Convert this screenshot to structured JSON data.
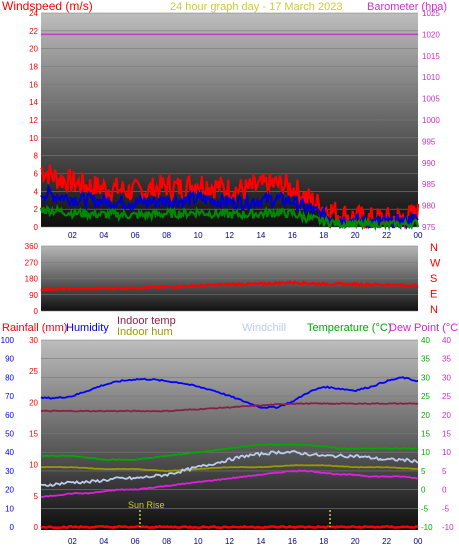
{
  "header": {
    "left_label": "Windspeed (m/s)",
    "center_label": "24 hour graph day - 17 March 2023",
    "right_label": "Barometer (hpa)"
  },
  "colors": {
    "wind_max": "#ff0000",
    "wind_avg": "#0000cc",
    "wind_min": "#008800",
    "barometer": "#cc33cc",
    "rainfall": "#ff0000",
    "humidity": "#0000ff",
    "indoor_temp": "#882244",
    "indoor_hum": "#999900",
    "windchill": "#bbccee",
    "temperature": "#00aa00",
    "dew_point": "#dd22dd",
    "sunrise_marker": "#cccc33"
  },
  "x_ticks": [
    "02",
    "04",
    "06",
    "08",
    "10",
    "12",
    "14",
    "16",
    "18",
    "20",
    "22",
    "00"
  ],
  "panel1": {
    "left_ticks": [
      "0",
      "2",
      "4",
      "6",
      "8",
      "10",
      "12",
      "14",
      "16",
      "18",
      "20",
      "22",
      "24"
    ],
    "right_ticks": [
      "975",
      "980",
      "985",
      "990",
      "995",
      "1000",
      "1005",
      "1010",
      "1015",
      "1020",
      "1025"
    ]
  },
  "panel2": {
    "left_ticks": [
      "0",
      "90",
      "180",
      "270",
      "360"
    ],
    "dir_labels": [
      "N",
      "W",
      "S",
      "E",
      "N"
    ]
  },
  "panel3": {
    "label_rain": "Rainfall (mm)",
    "label_hum": "Humidity",
    "label_in_temp": "Indoor temp",
    "label_in_hum": "Indoor hum",
    "label_windchill": "Windchill",
    "label_temp": "Temperature (°C)",
    "label_dew": "Dew Point (°C)",
    "hum_ticks": [
      "0",
      "10",
      "20",
      "30",
      "40",
      "50",
      "60",
      "70",
      "80",
      "90",
      "100"
    ],
    "rain_ticks": [
      "0",
      "5",
      "10",
      "15",
      "20",
      "25",
      "30"
    ],
    "temp_ticks": [
      "-10",
      "-5",
      "0",
      "5",
      "10",
      "15",
      "20",
      "25",
      "30",
      "35",
      "40"
    ],
    "sunrise_label": "Sun Rise"
  },
  "chart_data": [
    {
      "type": "line",
      "title": "24 hour graph day - 17 March 2023",
      "xlabel": "",
      "ylabel": "Windspeed (m/s)",
      "y2label": "Barometer (hpa)",
      "x_unit": "hour of day",
      "ylim": [
        0,
        24
      ],
      "y2lim": [
        975,
        1025
      ],
      "grid": true,
      "series": [
        {
          "name": "",
          "axis": "left",
          "x": [
            0,
            1,
            2,
            3,
            4,
            5,
            6,
            7,
            8,
            9,
            10,
            11,
            12,
            13,
            14,
            15,
            16,
            17,
            18,
            19,
            20,
            21,
            22,
            23,
            24
          ],
          "values": [
            6.5,
            5.5,
            5,
            4.6,
            4.4,
            4.2,
            4.0,
            4.2,
            4.6,
            4.4,
            5,
            4.6,
            4.2,
            4.2,
            4.6,
            4.8,
            4.4,
            3.2,
            2.2,
            1.5,
            1.1,
            0.9,
            0.9,
            1.0,
            1.5
          ]
        },
        {
          "name": "",
          "axis": "left",
          "x": [
            0,
            1,
            2,
            3,
            4,
            5,
            6,
            7,
            8,
            9,
            10,
            11,
            12,
            13,
            14,
            15,
            16,
            17,
            18,
            19,
            20,
            21,
            22,
            23,
            24
          ],
          "values": [
            3.8,
            3.5,
            3.2,
            3.0,
            2.9,
            2.8,
            2.7,
            2.8,
            3.0,
            2.9,
            3.2,
            3.0,
            2.8,
            2.8,
            3.0,
            3.1,
            2.9,
            2.0,
            1.3,
            0.9,
            0.7,
            0.5,
            0.5,
            0.6,
            0.9
          ]
        },
        {
          "name": "",
          "axis": "left",
          "x": [
            0,
            1,
            2,
            3,
            4,
            5,
            6,
            7,
            8,
            9,
            10,
            11,
            12,
            13,
            14,
            15,
            16,
            17,
            18,
            19,
            20,
            21,
            22,
            23,
            24
          ],
          "values": [
            2.0,
            1.8,
            1.6,
            1.5,
            1.4,
            1.4,
            1.3,
            1.4,
            1.5,
            1.5,
            1.7,
            1.5,
            1.4,
            1.4,
            1.5,
            1.6,
            1.5,
            1.0,
            0.6,
            0.4,
            0.3,
            0.2,
            0.2,
            0.3,
            0.4
          ]
        },
        {
          "name": "",
          "axis": "right",
          "x": [
            0,
            24
          ],
          "values": [
            1020,
            1020
          ]
        }
      ]
    },
    {
      "type": "line",
      "ylabel": "",
      "ylim": [
        0,
        360
      ],
      "y_categories": [
        "N",
        "W",
        "S",
        "E",
        "N"
      ],
      "series": [
        {
          "name": "",
          "x": [
            0,
            2,
            4,
            6,
            8,
            10,
            12,
            14,
            16,
            18,
            20,
            22,
            24
          ],
          "values": [
            120,
            122,
            125,
            128,
            132,
            140,
            148,
            150,
            158,
            150,
            148,
            145,
            140
          ]
        }
      ]
    },
    {
      "type": "line",
      "x_unit": "hour of day",
      "ylim_humidity": [
        0,
        100
      ],
      "ylim_rain": [
        0,
        30
      ],
      "ylim_temp": [
        -10,
        40
      ],
      "grid": true,
      "series": [
        {
          "name": "Humidity",
          "axis": "humidity",
          "x": [
            0,
            1,
            2,
            3,
            4,
            5,
            6,
            7,
            8,
            9,
            10,
            11,
            12,
            13,
            14,
            15,
            16,
            17,
            18,
            19,
            20,
            21,
            22,
            23,
            24
          ],
          "values": [
            69,
            69,
            70,
            73,
            76,
            78,
            79,
            79,
            78,
            77,
            75,
            73,
            70,
            67,
            64,
            64,
            67,
            72,
            75,
            74,
            73,
            75,
            78,
            80,
            78
          ]
        },
        {
          "name": "Indoor temp",
          "axis": "temp",
          "x": [
            0,
            2,
            4,
            6,
            8,
            10,
            12,
            14,
            16,
            18,
            20,
            22,
            24
          ],
          "values": [
            21,
            21,
            21,
            21,
            21,
            21.5,
            22,
            22.5,
            23,
            23,
            23,
            23,
            23
          ]
        },
        {
          "name": "Indoor hum",
          "axis": "humidity",
          "x": [
            0,
            2,
            4,
            6,
            8,
            10,
            12,
            14,
            16,
            18,
            20,
            22,
            24
          ],
          "values": [
            32,
            32,
            31,
            31,
            30,
            31,
            32,
            32,
            33,
            33,
            32,
            32,
            31
          ]
        },
        {
          "name": "Windchill",
          "axis": "temp",
          "x": [
            0,
            1,
            2,
            3,
            4,
            5,
            6,
            7,
            8,
            9,
            10,
            11,
            12,
            13,
            14,
            15,
            16,
            17,
            18,
            19,
            20,
            21,
            22,
            23,
            24
          ],
          "values": [
            1,
            1.5,
            2,
            2,
            2.5,
            3,
            3,
            3.5,
            4,
            5,
            6,
            7,
            8,
            9,
            9.5,
            10,
            10,
            9.5,
            9,
            9,
            9,
            8.5,
            8,
            8,
            7.5
          ]
        },
        {
          "name": "Temperature (°C)",
          "axis": "temp",
          "x": [
            0,
            1,
            2,
            3,
            4,
            5,
            6,
            7,
            8,
            9,
            10,
            11,
            12,
            13,
            14,
            15,
            16,
            17,
            18,
            19,
            20,
            21,
            22,
            23,
            24
          ],
          "values": [
            9,
            9,
            9,
            8.5,
            8,
            8,
            8,
            8.5,
            9,
            9.5,
            10,
            10.5,
            11,
            11.5,
            12,
            12,
            12,
            12,
            11.5,
            11,
            11,
            11,
            11,
            11,
            11
          ]
        },
        {
          "name": "Dew Point (°C)",
          "axis": "temp",
          "x": [
            0,
            1,
            2,
            3,
            4,
            5,
            6,
            7,
            8,
            9,
            10,
            11,
            12,
            13,
            14,
            15,
            16,
            17,
            18,
            19,
            20,
            21,
            22,
            23,
            24
          ],
          "values": [
            -2,
            -1.5,
            -1,
            -1,
            -0.5,
            0,
            0,
            0.5,
            1,
            1.5,
            2,
            2.5,
            3,
            3.5,
            4,
            4.5,
            5,
            5,
            4.5,
            4,
            4,
            3.5,
            3.5,
            3.5,
            3
          ]
        },
        {
          "name": "Rainfall (mm)",
          "axis": "rain",
          "x": [
            0,
            24
          ],
          "values": [
            0,
            0
          ]
        }
      ],
      "annotations": [
        {
          "text": "Sun Rise",
          "x": 6.3
        },
        {
          "text": "",
          "x": 18.4
        }
      ]
    }
  ]
}
